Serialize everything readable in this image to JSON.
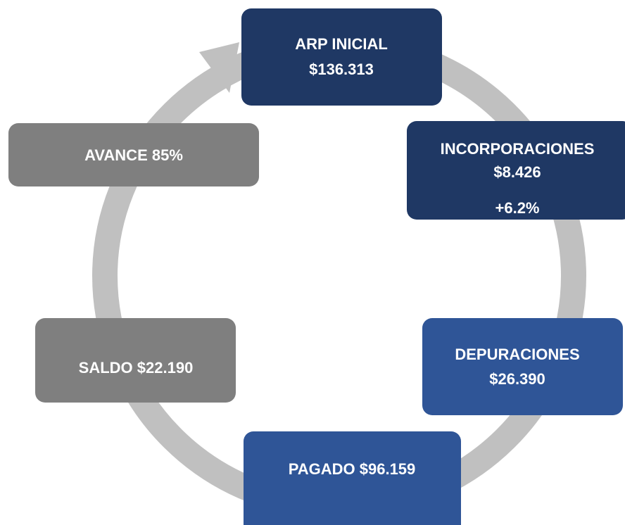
{
  "nodes": [
    {
      "lines": [
        "ARP INICIAL",
        "$136.313"
      ]
    },
    {
      "lines": [
        "INCORPORACIONES",
        "$8.426",
        "+6.2%"
      ]
    },
    {
      "lines": [
        "DEPURACIONES",
        "$26.390"
      ]
    },
    {
      "lines": [
        "PAGADO $96.159"
      ]
    },
    {
      "lines": [
        "SALDO $22.190"
      ]
    },
    {
      "lines": [
        "AVANCE 85%"
      ]
    }
  ]
}
